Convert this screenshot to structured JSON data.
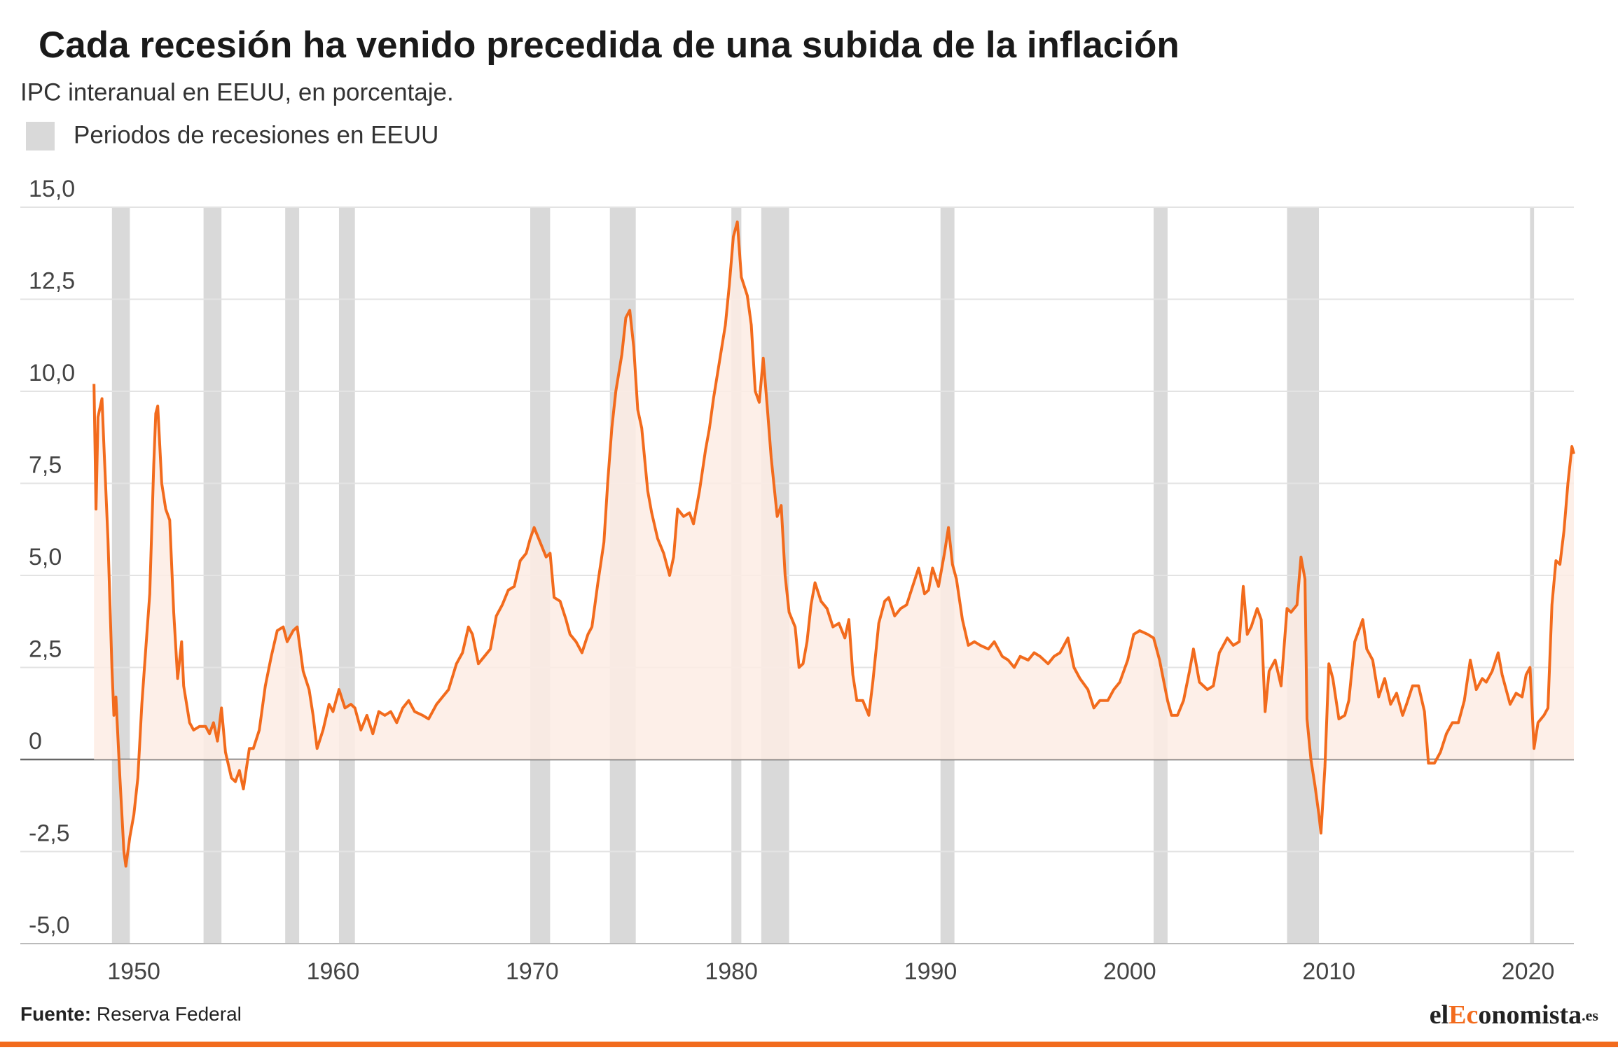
{
  "chart_data": {
    "type": "line",
    "title": "Cada recesión ha venido precedida de una subida de la inflación",
    "subtitle": "IPC interanual en EEUU, en porcentaje.",
    "recession_label": "Periodos de recesiones en EEUU",
    "recession_color": "#d9d9d9",
    "recessions": [
      [
        1948.9,
        1949.8
      ],
      [
        1953.5,
        1954.4
      ],
      [
        1957.6,
        1958.3
      ],
      [
        1960.3,
        1961.1
      ],
      [
        1969.9,
        1970.9
      ],
      [
        1973.9,
        1975.2
      ],
      [
        1980.0,
        1980.5
      ],
      [
        1981.5,
        1982.9
      ],
      [
        1990.5,
        1991.2
      ],
      [
        2001.2,
        2001.9
      ],
      [
        2007.9,
        2009.5
      ],
      [
        2020.1,
        2020.3
      ]
    ],
    "color": "#f26b1d",
    "area_color": "#fdece4",
    "x": [
      1948.0,
      1948.1,
      1948.2,
      1948.4,
      1948.5,
      1948.7,
      1948.9,
      1949.0,
      1949.1,
      1949.3,
      1949.5,
      1949.6,
      1949.8,
      1950.0,
      1950.2,
      1950.4,
      1950.6,
      1950.8,
      1951.0,
      1951.1,
      1951.2,
      1951.4,
      1951.6,
      1951.8,
      1952.0,
      1952.2,
      1952.4,
      1952.5,
      1952.8,
      1953.0,
      1953.3,
      1953.6,
      1953.8,
      1954.0,
      1954.2,
      1954.4,
      1954.6,
      1954.9,
      1955.1,
      1955.3,
      1955.5,
      1955.8,
      1956.0,
      1956.3,
      1956.6,
      1956.9,
      1957.2,
      1957.5,
      1957.7,
      1958.0,
      1958.2,
      1958.5,
      1958.8,
      1959.0,
      1959.2,
      1959.5,
      1959.8,
      1960.0,
      1960.3,
      1960.6,
      1960.9,
      1961.1,
      1961.4,
      1961.7,
      1962.0,
      1962.3,
      1962.6,
      1962.9,
      1963.2,
      1963.5,
      1963.8,
      1964.1,
      1964.5,
      1964.8,
      1965.2,
      1965.5,
      1965.8,
      1966.2,
      1966.5,
      1966.8,
      1967.0,
      1967.3,
      1967.6,
      1967.9,
      1968.2,
      1968.5,
      1968.8,
      1969.1,
      1969.4,
      1969.7,
      1969.9,
      1970.1,
      1970.4,
      1970.7,
      1970.9,
      1971.1,
      1971.4,
      1971.7,
      1971.9,
      1972.2,
      1972.5,
      1972.8,
      1973.0,
      1973.3,
      1973.6,
      1973.8,
      1974.0,
      1974.2,
      1974.5,
      1974.7,
      1974.9,
      1975.1,
      1975.3,
      1975.5,
      1975.8,
      1976.0,
      1976.3,
      1976.6,
      1976.9,
      1977.1,
      1977.3,
      1977.6,
      1977.9,
      1978.1,
      1978.4,
      1978.7,
      1978.9,
      1979.1,
      1979.4,
      1979.7,
      1979.9,
      1980.1,
      1980.3,
      1980.5,
      1980.8,
      1981.0,
      1981.2,
      1981.4,
      1981.6,
      1981.8,
      1982.0,
      1982.3,
      1982.5,
      1982.7,
      1982.9,
      1983.2,
      1983.4,
      1983.6,
      1983.8,
      1984.0,
      1984.2,
      1984.5,
      1984.8,
      1985.1,
      1985.4,
      1985.7,
      1985.9,
      1986.1,
      1986.3,
      1986.6,
      1986.9,
      1987.1,
      1987.4,
      1987.7,
      1987.9,
      1988.2,
      1988.5,
      1988.8,
      1989.1,
      1989.4,
      1989.7,
      1989.9,
      1990.1,
      1990.4,
      1990.7,
      1990.9,
      1991.1,
      1991.3,
      1991.6,
      1991.9,
      1992.2,
      1992.5,
      1992.9,
      1993.2,
      1993.6,
      1993.9,
      1994.2,
      1994.5,
      1994.9,
      1995.2,
      1995.5,
      1995.9,
      1996.2,
      1996.5,
      1996.9,
      1997.2,
      1997.5,
      1997.9,
      1998.2,
      1998.5,
      1998.9,
      1999.2,
      1999.5,
      1999.9,
      2000.2,
      2000.5,
      2000.9,
      2001.2,
      2001.5,
      2001.9,
      2002.1,
      2002.4,
      2002.7,
      2003.0,
      2003.2,
      2003.5,
      2003.9,
      2004.2,
      2004.5,
      2004.9,
      2005.2,
      2005.5,
      2005.7,
      2005.9,
      2006.1,
      2006.4,
      2006.6,
      2006.8,
      2007.0,
      2007.3,
      2007.6,
      2007.9,
      2008.1,
      2008.4,
      2008.6,
      2008.8,
      2008.9,
      2009.1,
      2009.3,
      2009.5,
      2009.6,
      2009.8,
      2010.0,
      2010.2,
      2010.5,
      2010.8,
      2011.0,
      2011.3,
      2011.7,
      2011.9,
      2012.2,
      2012.5,
      2012.8,
      2013.1,
      2013.4,
      2013.7,
      2013.9,
      2014.2,
      2014.5,
      2014.8,
      2015.0,
      2015.3,
      2015.6,
      2015.9,
      2016.2,
      2016.5,
      2016.8,
      2017.1,
      2017.4,
      2017.7,
      2017.9,
      2018.2,
      2018.5,
      2018.7,
      2018.9,
      2019.1,
      2019.4,
      2019.7,
      2019.9,
      2020.1,
      2020.3,
      2020.5,
      2020.8,
      2021.0,
      2021.2,
      2021.4,
      2021.6,
      2021.8,
      2022.0,
      2022.2,
      2022.3
    ],
    "values": [
      10.2,
      6.8,
      9.3,
      9.8,
      8.5,
      6.0,
      2.5,
      1.2,
      1.7,
      -0.5,
      -2.5,
      -2.9,
      -2.1,
      -1.5,
      -0.5,
      1.5,
      3.0,
      4.5,
      8.0,
      9.4,
      9.6,
      7.5,
      6.8,
      6.5,
      4.0,
      2.2,
      3.2,
      2.0,
      1.0,
      0.8,
      0.9,
      0.9,
      0.7,
      1.0,
      0.5,
      1.4,
      0.2,
      -0.5,
      -0.6,
      -0.3,
      -0.8,
      0.3,
      0.3,
      0.8,
      2.0,
      2.8,
      3.5,
      3.6,
      3.2,
      3.5,
      3.6,
      2.4,
      1.9,
      1.2,
      0.3,
      0.8,
      1.5,
      1.3,
      1.9,
      1.4,
      1.5,
      1.4,
      0.8,
      1.2,
      0.7,
      1.3,
      1.2,
      1.3,
      1.0,
      1.4,
      1.6,
      1.3,
      1.2,
      1.1,
      1.5,
      1.7,
      1.9,
      2.6,
      2.9,
      3.6,
      3.4,
      2.6,
      2.8,
      3.0,
      3.9,
      4.2,
      4.6,
      4.7,
      5.4,
      5.6,
      6.0,
      6.3,
      5.9,
      5.5,
      5.6,
      4.4,
      4.3,
      3.8,
      3.4,
      3.2,
      2.9,
      3.4,
      3.6,
      4.8,
      5.9,
      7.6,
      9.0,
      10.0,
      11.0,
      12.0,
      12.2,
      11.2,
      9.5,
      9.0,
      7.3,
      6.7,
      6.0,
      5.6,
      5.0,
      5.5,
      6.8,
      6.6,
      6.7,
      6.4,
      7.3,
      8.4,
      9.0,
      9.8,
      10.8,
      11.8,
      12.9,
      14.2,
      14.6,
      13.1,
      12.6,
      11.8,
      10.0,
      9.7,
      10.9,
      9.6,
      8.2,
      6.6,
      6.9,
      5.0,
      4.0,
      3.6,
      2.5,
      2.6,
      3.2,
      4.2,
      4.8,
      4.3,
      4.1,
      3.6,
      3.7,
      3.3,
      3.8,
      2.3,
      1.6,
      1.6,
      1.2,
      2.1,
      3.7,
      4.3,
      4.4,
      3.9,
      4.1,
      4.2,
      4.7,
      5.2,
      4.5,
      4.6,
      5.2,
      4.7,
      5.6,
      6.3,
      5.3,
      4.9,
      3.8,
      3.1,
      3.2,
      3.1,
      3.0,
      3.2,
      2.8,
      2.7,
      2.5,
      2.8,
      2.7,
      2.9,
      2.8,
      2.6,
      2.8,
      2.9,
      3.3,
      2.5,
      2.2,
      1.9,
      1.4,
      1.6,
      1.6,
      1.9,
      2.1,
      2.7,
      3.4,
      3.5,
      3.4,
      3.3,
      2.7,
      1.6,
      1.2,
      1.2,
      1.6,
      2.4,
      3.0,
      2.1,
      1.9,
      2.0,
      2.9,
      3.3,
      3.1,
      3.2,
      4.7,
      3.4,
      3.6,
      4.1,
      3.8,
      1.3,
      2.4,
      2.7,
      2.0,
      4.1,
      4.0,
      4.2,
      5.5,
      4.9,
      1.1,
      0.0,
      -0.7,
      -1.5,
      -2.0,
      -0.2,
      2.6,
      2.2,
      1.1,
      1.2,
      1.6,
      3.2,
      3.8,
      3.0,
      2.7,
      1.7,
      2.2,
      1.5,
      1.8,
      1.2,
      1.5,
      2.0,
      2.0,
      1.3,
      -0.1,
      -0.1,
      0.2,
      0.7,
      1.0,
      1.0,
      1.6,
      2.7,
      1.9,
      2.2,
      2.1,
      2.4,
      2.9,
      2.3,
      1.9,
      1.5,
      1.8,
      1.7,
      2.3,
      2.5,
      0.3,
      1.0,
      1.2,
      1.4,
      4.2,
      5.4,
      5.3,
      6.2,
      7.5,
      8.5,
      8.3
    ],
    "xlim": [
      1944.3,
      2022.3
    ],
    "xticks": [
      1950,
      1960,
      1970,
      1980,
      1990,
      2000,
      2010,
      2020
    ],
    "ylim": [
      -5,
      15
    ],
    "yticks": [
      {
        "value": -5,
        "label": "-5,0"
      },
      {
        "value": -2.5,
        "label": "-2,5"
      },
      0,
      {
        "value": 2.5,
        "label": "2,5"
      },
      {
        "value": 5,
        "label": "5,0"
      },
      {
        "value": 7.5,
        "label": "7,5"
      },
      {
        "value": 10,
        "label": "10,0"
      },
      {
        "value": 12.5,
        "label": "12,5"
      },
      {
        "value": 15,
        "label": "15,0"
      }
    ],
    "grid": true,
    "source_label": "Fuente:",
    "source": "Reserva Federal",
    "logo": {
      "prefix": "el",
      "highlight": "Ec",
      "rest": "onomista",
      "suffix": ".es"
    }
  }
}
